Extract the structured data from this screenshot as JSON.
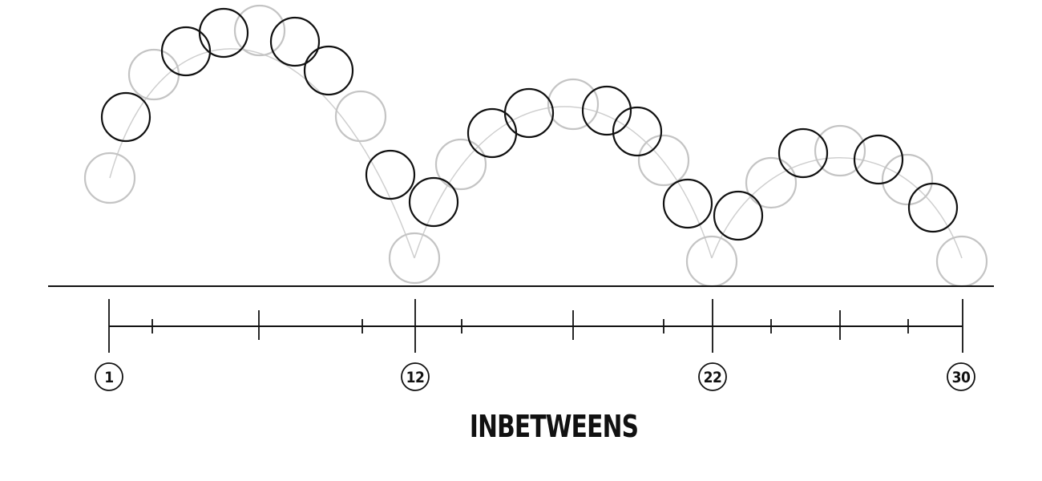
{
  "caption": "INBETWEENS",
  "keyframe_labels": [
    "1",
    "12",
    "22",
    "30"
  ],
  "colors": {
    "keyframe_stroke": "#111111",
    "ghost_stroke": "#c4c4c4",
    "arc_stroke": "#cfcfcf",
    "background": "#ffffff"
  }
}
